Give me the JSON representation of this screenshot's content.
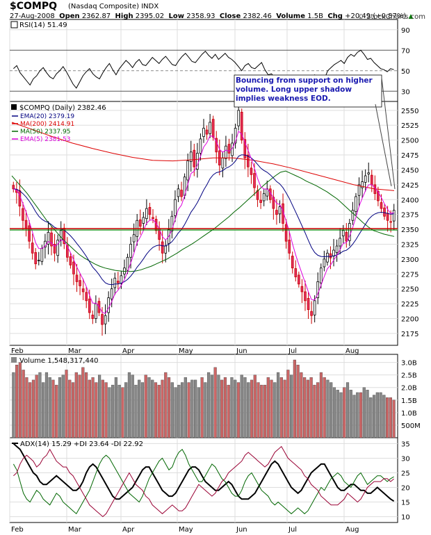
{
  "header": {
    "symbol": "$COMPQ",
    "name": "(Nasdaq Composite)",
    "exchange": "INDX",
    "date": "27-Aug-2008",
    "open_label": "Open",
    "open": "2362.87",
    "high_label": "High",
    "high": "2395.02",
    "low_label": "Low",
    "low": "2358.93",
    "close_label": "Close",
    "close": "2382.46",
    "volume_label": "Volume",
    "volume": "1.5B",
    "chg_label": "Chg",
    "chg": "+20.49 (+0.87%)",
    "chg_icon": "triangle-up-icon",
    "brand": "StockCharts.com",
    "brand_icon": "copyright-icon"
  },
  "annotation": "Bouncing from support on higher volume. Long upper shadow implies weakness EOD.",
  "colors": {
    "up": "#000000",
    "down": "#cc0000",
    "candle_down_fill": "#e03060",
    "ema20": "#000080",
    "ma200": "#dd0000",
    "ma50": "#006600",
    "ema5": "#dd00dd",
    "support": "#cc0000",
    "support2": "#008800",
    "vol_up": "#888888",
    "vol_down": "#cc6666",
    "adx": "#000000",
    "plus_di": "#006600",
    "minus_di": "#990033"
  },
  "chart_data": [
    {
      "type": "line",
      "title": "RSI(14) 51.49",
      "series": [
        {
          "name": "RSI(14)",
          "values": [
            52,
            55,
            48,
            44,
            40,
            36,
            42,
            45,
            50,
            53,
            48,
            44,
            42,
            47,
            50,
            54,
            49,
            43,
            37,
            33,
            39,
            45,
            49,
            52,
            47,
            44,
            42,
            48,
            53,
            57,
            51,
            46,
            52,
            56,
            60,
            57,
            53,
            58,
            61,
            56,
            55,
            59,
            63,
            60,
            57,
            61,
            64,
            60,
            56,
            55,
            60,
            64,
            67,
            63,
            59,
            58,
            62,
            66,
            69,
            65,
            62,
            66,
            61,
            64,
            67,
            63,
            61,
            58,
            54,
            50,
            55,
            57,
            53,
            52,
            55,
            58,
            51,
            46,
            47,
            43,
            40,
            38,
            35,
            32,
            34,
            38,
            45,
            43,
            36,
            33,
            39,
            46,
            44,
            40,
            42,
            50,
            53,
            56,
            58,
            60,
            57,
            63,
            66,
            64,
            68,
            70,
            66,
            61,
            62,
            58,
            55,
            52,
            51,
            49,
            52,
            51
          ]
        }
      ],
      "yticks": [
        "30",
        "50",
        "70",
        "90"
      ],
      "ylim": [
        20,
        100
      ]
    },
    {
      "type": "candlestick",
      "title": "$COMPQ (Daily) 2382.46",
      "legend": [
        {
          "name": "EMA(20)",
          "value": "2379.19"
        },
        {
          "name": "MA(200)",
          "value": "2414.91"
        },
        {
          "name": "MA(50)",
          "value": "2337.95"
        },
        {
          "name": "EMA(5)",
          "value": "2381.53"
        }
      ],
      "yticks": [
        "2175",
        "2200",
        "2225",
        "2250",
        "2275",
        "2300",
        "2325",
        "2350",
        "2375",
        "2400",
        "2425",
        "2450",
        "2475",
        "2500",
        "2525",
        "2550"
      ],
      "ylim": [
        2155,
        2565
      ],
      "support": 2350,
      "months": [
        "Feb",
        "Mar",
        "Apr",
        "May",
        "Jun",
        "Jul",
        "Aug"
      ],
      "close": [
        2418,
        2412,
        2389,
        2365,
        2352,
        2330,
        2310,
        2292,
        2298,
        2318,
        2330,
        2345,
        2322,
        2310,
        2332,
        2348,
        2326,
        2303,
        2290,
        2275,
        2262,
        2255,
        2245,
        2230,
        2210,
        2200,
        2225,
        2210,
        2190,
        2205,
        2235,
        2250,
        2268,
        2260,
        2272,
        2285,
        2303,
        2325,
        2341,
        2365,
        2355,
        2370,
        2385,
        2375,
        2368,
        2348,
        2333,
        2310,
        2322,
        2350,
        2372,
        2400,
        2418,
        2405,
        2438,
        2465,
        2480,
        2455,
        2478,
        2502,
        2520,
        2510,
        2530,
        2505,
        2480,
        2458,
        2470,
        2490,
        2478,
        2495,
        2520,
        2550,
        2500,
        2470,
        2455,
        2442,
        2420,
        2400,
        2395,
        2410,
        2418,
        2400,
        2385,
        2375,
        2388,
        2360,
        2330,
        2310,
        2285,
        2270,
        2258,
        2245,
        2230,
        2215,
        2205,
        2230,
        2262,
        2285,
        2300,
        2310,
        2302,
        2315,
        2322,
        2335,
        2348,
        2330,
        2360,
        2382,
        2405,
        2425,
        2430,
        2440,
        2445,
        2425,
        2410,
        2398,
        2385,
        2372,
        2365,
        2362,
        2382
      ],
      "ma50": [
        2440,
        2430,
        2420,
        2410,
        2398,
        2386,
        2374,
        2362,
        2352,
        2342,
        2332,
        2324,
        2316,
        2308,
        2302,
        2297,
        2292,
        2288,
        2285,
        2283,
        2281,
        2280,
        2279,
        2279,
        2280,
        2282,
        2285,
        2288,
        2292,
        2296,
        2300,
        2305,
        2310,
        2316,
        2321,
        2326,
        2332,
        2338,
        2344,
        2350,
        2357,
        2364,
        2371,
        2379,
        2386,
        2394,
        2402,
        2410,
        2418,
        2426,
        2433,
        2440,
        2446,
        2448,
        2444,
        2440,
        2436,
        2431,
        2427,
        2423,
        2418,
        2413,
        2407,
        2401,
        2393,
        2385,
        2377,
        2369,
        2361,
        2354,
        2348,
        2345,
        2342,
        2340,
        2338
      ],
      "ma200": [
        2530,
        2518,
        2506,
        2495,
        2486,
        2478,
        2471,
        2466,
        2465,
        2467,
        2470,
        2470,
        2466,
        2460,
        2452,
        2443,
        2434,
        2425,
        2418,
        2415
      ]
    },
    {
      "type": "bar",
      "title": "Volume 1,548,317,440",
      "yticks": [
        "500M",
        "1.0B",
        "1.5B",
        "2.0B",
        "2.5B",
        "3.0B"
      ],
      "ylim": [
        0,
        3.1
      ],
      "units": "billions",
      "values": [
        2.6,
        2.9,
        3.0,
        2.7,
        2.4,
        2.2,
        2.3,
        2.5,
        2.6,
        2.2,
        2.6,
        2.4,
        2.3,
        2.1,
        2.4,
        2.5,
        2.7,
        2.3,
        2.2,
        2.6,
        2.5,
        2.8,
        2.6,
        2.3,
        2.4,
        2.2,
        2.5,
        2.3,
        2.2,
        2.0,
        2.1,
        2.4,
        2.1,
        2.0,
        2.2,
        2.6,
        2.5,
        2.1,
        2.3,
        2.2,
        2.5,
        2.4,
        2.3,
        2.2,
        2.1,
        2.3,
        2.6,
        2.4,
        2.2,
        2.0,
        2.1,
        2.2,
        2.4,
        2.2,
        2.3,
        2.3,
        2.0,
        2.4,
        2.2,
        2.6,
        2.5,
        2.8,
        2.5,
        2.3,
        2.4,
        2.1,
        2.4,
        2.3,
        2.2,
        2.5,
        2.4,
        2.2,
        2.3,
        2.5,
        2.2,
        2.1,
        2.1,
        2.4,
        2.3,
        2.2,
        2.6,
        2.4,
        2.3,
        2.7,
        2.5,
        3.1,
        2.9,
        2.6,
        2.4,
        2.3,
        2.4,
        2.1,
        2.2,
        2.6,
        2.4,
        2.3,
        2.2,
        2.0,
        1.9,
        1.8,
        2.0,
        2.2,
        1.9,
        1.7,
        1.8,
        1.8,
        2.0,
        1.9,
        1.6,
        1.7,
        1.8,
        1.8,
        1.7,
        1.6,
        1.6,
        1.5
      ]
    },
    {
      "type": "line",
      "title": "ADX(14) 15.29 +DI 23.64 -DI 22.92",
      "yticks": [
        "10",
        "15",
        "20",
        "25",
        "30",
        "35"
      ],
      "ylim": [
        8,
        37
      ],
      "series": [
        {
          "name": "ADX(14)",
          "values": [
            35,
            34,
            33,
            31,
            29,
            27,
            25,
            24,
            22,
            21,
            21,
            22,
            23,
            24,
            23,
            22,
            21,
            20,
            19,
            19,
            20,
            22,
            25,
            27,
            28,
            27,
            25,
            23,
            21,
            19,
            17,
            16,
            16,
            17,
            18,
            19,
            20,
            22,
            24,
            26,
            27,
            27,
            25,
            23,
            21,
            19,
            18,
            17,
            17,
            18,
            20,
            22,
            24,
            26,
            27,
            27,
            26,
            24,
            22,
            21,
            20,
            19,
            19,
            20,
            21,
            22,
            21,
            19,
            17,
            16,
            16,
            16,
            17,
            18,
            20,
            22,
            24,
            26,
            28,
            29,
            28,
            26,
            24,
            22,
            20,
            19,
            18,
            19,
            21,
            23,
            25,
            26,
            27,
            28,
            28,
            26,
            24,
            22,
            20,
            19,
            19,
            20,
            21,
            21,
            20,
            19,
            19,
            18,
            18,
            19,
            20,
            19,
            18,
            17,
            16,
            15.29
          ]
        },
        {
          "name": "+DI",
          "values": [
            28,
            26,
            22,
            18,
            16,
            15,
            17,
            19,
            18,
            16,
            15,
            14,
            16,
            18,
            17,
            15,
            14,
            13,
            12,
            11,
            13,
            15,
            17,
            19,
            22,
            25,
            28,
            30,
            31,
            30,
            28,
            26,
            24,
            22,
            20,
            18,
            17,
            16,
            15,
            17,
            20,
            23,
            25,
            27,
            29,
            30,
            28,
            26,
            27,
            30,
            32,
            33,
            31,
            28,
            26,
            24,
            22,
            22,
            24,
            26,
            28,
            27,
            25,
            23,
            22,
            20,
            18,
            17,
            17,
            19,
            22,
            24,
            25,
            23,
            21,
            19,
            18,
            17,
            15,
            14,
            15,
            14,
            13,
            12,
            11,
            12,
            13,
            12,
            11,
            12,
            14,
            16,
            18,
            20,
            19,
            21,
            23,
            24,
            25,
            24,
            22,
            21,
            20,
            22,
            24,
            25,
            23,
            21,
            22,
            23,
            24,
            24,
            23,
            22,
            23,
            23.64
          ]
        },
        {
          "name": "-DI",
          "values": [
            24,
            25,
            28,
            30,
            31,
            30,
            29,
            27,
            28,
            30,
            31,
            33,
            31,
            29,
            28,
            27,
            27,
            25,
            24,
            22,
            20,
            18,
            16,
            14,
            13,
            12,
            11,
            10,
            11,
            13,
            15,
            17,
            19,
            21,
            23,
            25,
            23,
            21,
            20,
            19,
            17,
            16,
            14,
            13,
            12,
            11,
            12,
            13,
            14,
            13,
            12,
            12,
            13,
            15,
            17,
            19,
            21,
            20,
            19,
            18,
            17,
            18,
            20,
            22,
            23,
            25,
            26,
            27,
            28,
            29,
            31,
            32,
            31,
            30,
            29,
            28,
            27,
            28,
            30,
            32,
            33,
            34,
            32,
            30,
            29,
            28,
            27,
            26,
            24,
            23,
            21,
            20,
            19,
            17,
            16,
            15,
            14,
            14,
            14,
            15,
            16,
            18,
            17,
            16,
            15,
            16,
            18,
            20,
            21,
            22,
            22,
            22,
            23,
            23,
            22,
            22.92
          ]
        }
      ]
    }
  ]
}
